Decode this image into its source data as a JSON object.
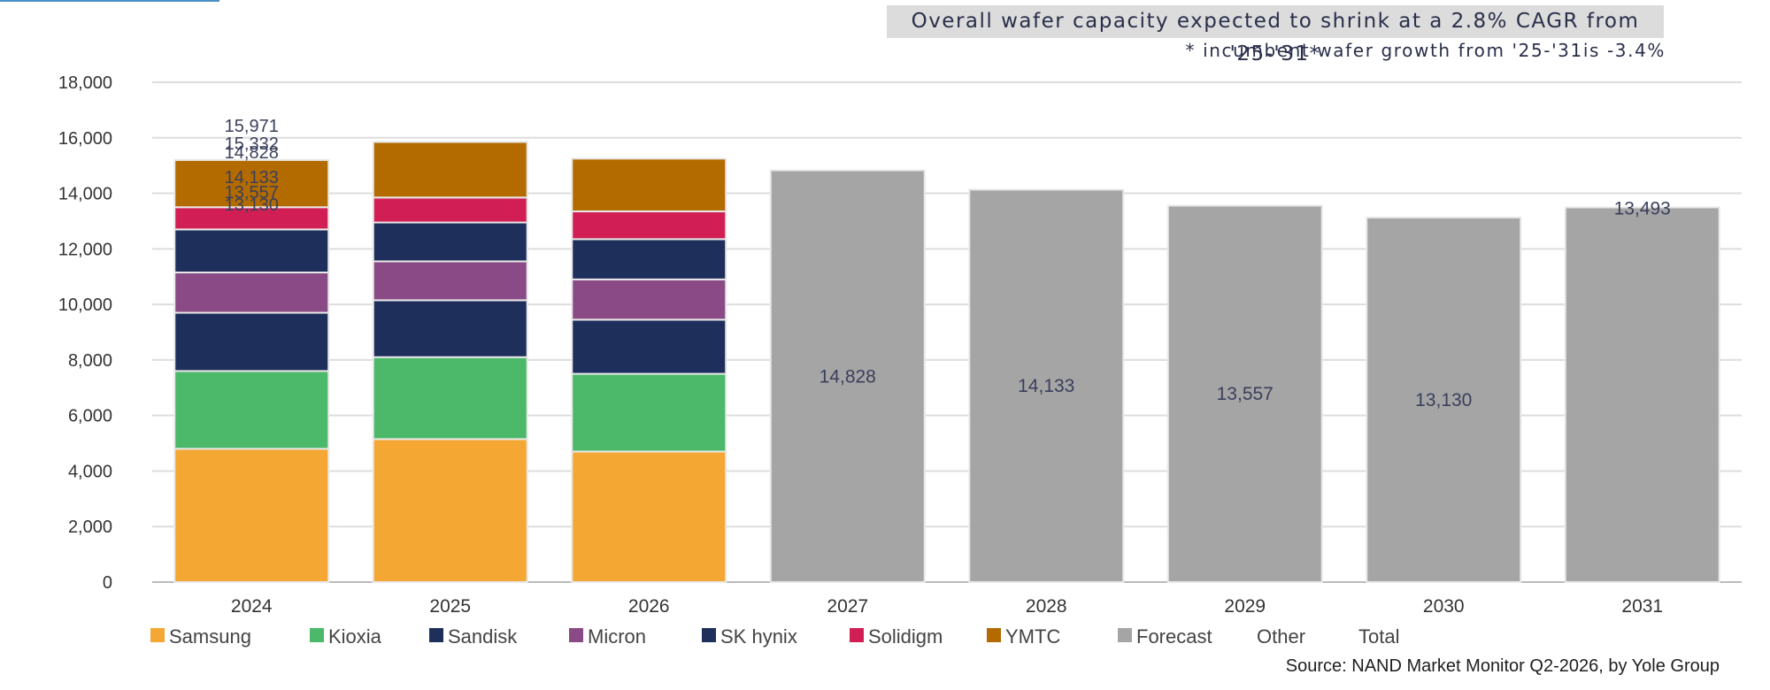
{
  "headline": "Overall wafer capacity expected to shrink at a 2.8% CAGR from '25-'31*",
  "subnote": "* incumbent wafer growth from '25-'31is -3.4%",
  "source": "Source: NAND Market Monitor Q2-2026, by Yole Group",
  "colors": {
    "Samsung": "#f5a733",
    "Kioxia": "#4bb86a",
    "Sandisk": "#1f2f5c",
    "Micron": "#8a4a86",
    "SK hynix": "#1f2f5c",
    "Solidigm": "#d11f55",
    "YMTC": "#b36b00",
    "Forecast": "#a5a5a5",
    "grid": "#dddddd"
  },
  "chart_data": {
    "type": "bar",
    "stacked": true,
    "categories": [
      "2024",
      "2025",
      "2026",
      "2027",
      "2028",
      "2029",
      "2030",
      "2031"
    ],
    "ylim": [
      0,
      18000
    ],
    "yticks": [
      "0",
      "2,000",
      "4,000",
      "6,000",
      "8,000",
      "10,000",
      "12,000",
      "14,000",
      "16,000",
      "18,000"
    ],
    "grid": true,
    "legend_position": "bottom",
    "legend": [
      "Samsung",
      "Kioxia",
      "Sandisk",
      "Micron",
      "SK hynix",
      "Solidigm",
      "YMTC",
      "Forecast",
      "Other",
      "Total"
    ],
    "series": [
      {
        "name": "Samsung",
        "values": [
          4800,
          5150,
          4700,
          0,
          0,
          0,
          0,
          0
        ]
      },
      {
        "name": "Kioxia",
        "values": [
          2800,
          2950,
          2800,
          0,
          0,
          0,
          0,
          0
        ]
      },
      {
        "name": "Sandisk",
        "values": [
          2100,
          2050,
          1950,
          0,
          0,
          0,
          0,
          0
        ]
      },
      {
        "name": "Micron",
        "values": [
          1450,
          1400,
          1450,
          0,
          0,
          0,
          0,
          0
        ]
      },
      {
        "name": "SK hynix",
        "values": [
          1550,
          1400,
          1450,
          0,
          0,
          0,
          0,
          0
        ]
      },
      {
        "name": "Solidigm",
        "values": [
          800,
          900,
          1000,
          0,
          0,
          0,
          0,
          0
        ]
      },
      {
        "name": "YMTC",
        "values": [
          1700,
          2000,
          1900,
          0,
          0,
          0,
          0,
          0
        ]
      },
      {
        "name": "Forecast",
        "values": [
          0,
          0,
          0,
          14828,
          14133,
          13557,
          13130,
          13493
        ]
      }
    ],
    "data_labels": [
      {
        "category": "2027",
        "text": "14,828"
      },
      {
        "category": "2028",
        "text": "14,133"
      },
      {
        "category": "2029",
        "text": "13,557"
      },
      {
        "category": "2030",
        "text": "13,130"
      },
      {
        "category": "2031",
        "text": "13,493"
      }
    ],
    "overlap_labels_2024": [
      "15,971",
      "15,332",
      "14,828",
      "14,133",
      "13,557",
      "13,130"
    ]
  }
}
